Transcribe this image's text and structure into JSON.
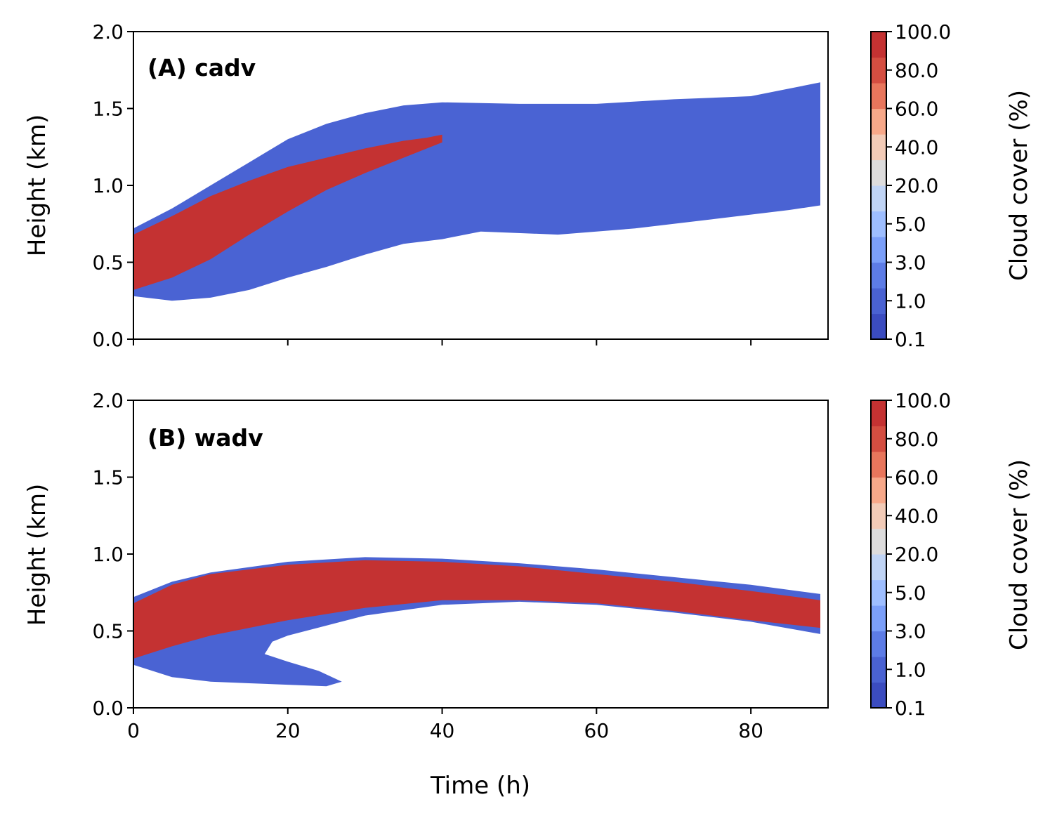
{
  "chart_data": [
    {
      "type": "contour",
      "title": "(A) cadv",
      "xlabel": "",
      "ylabel": "Height (km)",
      "xlim": [
        0,
        90
      ],
      "ylim": [
        0,
        2.0
      ],
      "xticks": [
        "0",
        "20",
        "40",
        "60",
        "80"
      ],
      "show_xtick_labels": false,
      "yticks": [
        "0.0",
        "0.5",
        "1.0",
        "1.5",
        "2.0"
      ],
      "colorbar": {
        "label": "Cloud cover (%)",
        "tick_labels": [
          "0.1",
          "1.0",
          "3.0",
          "5.0",
          "20.0",
          "40.0",
          "60.0",
          "80.0",
          "100.0"
        ]
      },
      "regions": [
        {
          "level": "low cloud cover (0.1-20%)",
          "color": "#4a63d3",
          "upper_boundary": [
            [
              0,
              0.72
            ],
            [
              5,
              0.85
            ],
            [
              10,
              1.0
            ],
            [
              15,
              1.15
            ],
            [
              20,
              1.3
            ],
            [
              25,
              1.4
            ],
            [
              30,
              1.47
            ],
            [
              35,
              1.52
            ],
            [
              40,
              1.54
            ],
            [
              50,
              1.53
            ],
            [
              60,
              1.53
            ],
            [
              70,
              1.56
            ],
            [
              80,
              1.58
            ],
            [
              89,
              1.67
            ]
          ],
          "lower_boundary": [
            [
              0,
              0.28
            ],
            [
              5,
              0.25
            ],
            [
              10,
              0.27
            ],
            [
              15,
              0.32
            ],
            [
              20,
              0.4
            ],
            [
              25,
              0.47
            ],
            [
              30,
              0.55
            ],
            [
              35,
              0.62
            ],
            [
              40,
              0.65
            ],
            [
              45,
              0.7
            ],
            [
              55,
              0.68
            ],
            [
              65,
              0.72
            ],
            [
              75,
              0.78
            ],
            [
              85,
              0.84
            ],
            [
              89,
              0.87
            ]
          ]
        },
        {
          "level": "high cloud cover (80-100%)",
          "color": "#c43232",
          "upper_boundary": [
            [
              0,
              0.68
            ],
            [
              5,
              0.8
            ],
            [
              10,
              0.93
            ],
            [
              15,
              1.03
            ],
            [
              20,
              1.12
            ],
            [
              25,
              1.18
            ],
            [
              30,
              1.24
            ],
            [
              35,
              1.29
            ],
            [
              38,
              1.31
            ],
            [
              40,
              1.33
            ]
          ],
          "lower_boundary": [
            [
              0,
              0.32
            ],
            [
              5,
              0.4
            ],
            [
              10,
              0.52
            ],
            [
              15,
              0.68
            ],
            [
              20,
              0.83
            ],
            [
              25,
              0.97
            ],
            [
              30,
              1.08
            ],
            [
              35,
              1.18
            ],
            [
              40,
              1.28
            ]
          ]
        }
      ]
    },
    {
      "type": "contour",
      "title": "(B) wadv",
      "xlabel": "Time (h)",
      "ylabel": "Height (km)",
      "xlim": [
        0,
        90
      ],
      "ylim": [
        0,
        2.0
      ],
      "xticks": [
        "0",
        "20",
        "40",
        "60",
        "80"
      ],
      "show_xtick_labels": true,
      "yticks": [
        "0.0",
        "0.5",
        "1.0",
        "1.5",
        "2.0"
      ],
      "colorbar": {
        "label": "Cloud cover (%)",
        "tick_labels": [
          "0.1",
          "1.0",
          "3.0",
          "5.0",
          "20.0",
          "40.0",
          "60.0",
          "80.0",
          "100.0"
        ]
      },
      "regions": [
        {
          "level": "low cloud cover (0.1-20%)",
          "color": "#4a63d3",
          "upper_boundary": [
            [
              0,
              0.72
            ],
            [
              5,
              0.82
            ],
            [
              10,
              0.88
            ],
            [
              20,
              0.95
            ],
            [
              30,
              0.98
            ],
            [
              40,
              0.97
            ],
            [
              50,
              0.94
            ],
            [
              60,
              0.9
            ],
            [
              70,
              0.85
            ],
            [
              80,
              0.8
            ],
            [
              89,
              0.74
            ]
          ],
          "lower_boundary": [
            [
              0,
              0.28
            ],
            [
              5,
              0.2
            ],
            [
              10,
              0.17
            ],
            [
              15,
              0.16
            ],
            [
              20,
              0.15
            ],
            [
              25,
              0.14
            ],
            [
              27,
              0.17
            ],
            [
              24,
              0.24
            ],
            [
              20,
              0.3
            ],
            [
              17,
              0.35
            ],
            [
              18,
              0.43
            ],
            [
              20,
              0.47
            ],
            [
              30,
              0.6
            ],
            [
              40,
              0.67
            ],
            [
              50,
              0.69
            ],
            [
              60,
              0.67
            ],
            [
              70,
              0.62
            ],
            [
              80,
              0.56
            ],
            [
              89,
              0.48
            ]
          ]
        },
        {
          "level": "high cloud cover (80-100%)",
          "color": "#c43232",
          "upper_boundary": [
            [
              0,
              0.68
            ],
            [
              5,
              0.8
            ],
            [
              10,
              0.87
            ],
            [
              20,
              0.93
            ],
            [
              30,
              0.96
            ],
            [
              40,
              0.95
            ],
            [
              50,
              0.92
            ],
            [
              60,
              0.87
            ],
            [
              70,
              0.82
            ],
            [
              80,
              0.76
            ],
            [
              89,
              0.7
            ]
          ],
          "lower_boundary": [
            [
              0,
              0.32
            ],
            [
              5,
              0.4
            ],
            [
              10,
              0.47
            ],
            [
              15,
              0.52
            ],
            [
              20,
              0.57
            ],
            [
              30,
              0.65
            ],
            [
              40,
              0.7
            ],
            [
              50,
              0.7
            ],
            [
              60,
              0.68
            ],
            [
              70,
              0.63
            ],
            [
              80,
              0.57
            ],
            [
              89,
              0.52
            ]
          ]
        }
      ]
    }
  ],
  "colorbar_colors": [
    "#3b4cc0",
    "#4a62d2",
    "#5d7ce6",
    "#7b9ff9",
    "#9ebeff",
    "#c0d4f5",
    "#dddcdc",
    "#f2cbb7",
    "#f7a889",
    "#e8765c",
    "#d44e41",
    "#c43232"
  ]
}
